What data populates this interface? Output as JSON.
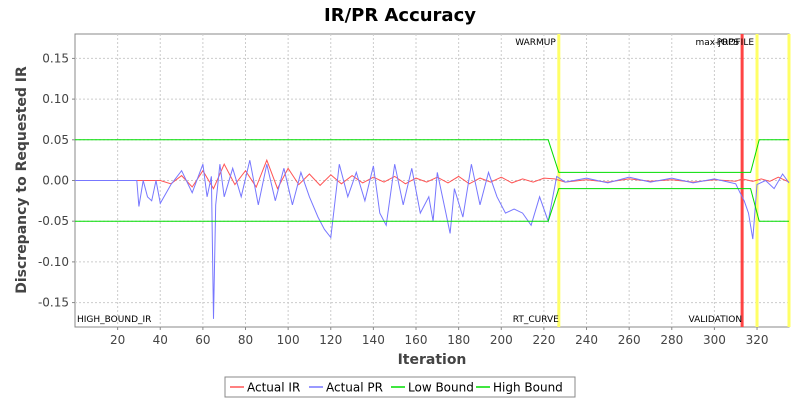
{
  "chart_data": {
    "type": "line",
    "title": "IR/PR Accuracy",
    "xlabel": "Iteration",
    "ylabel": "Discrepancy to Requested IR",
    "xlim": [
      0,
      335
    ],
    "ylim": [
      -0.18,
      0.18
    ],
    "x_ticks": [
      20,
      40,
      60,
      80,
      100,
      120,
      140,
      160,
      180,
      200,
      220,
      240,
      260,
      280,
      300,
      320
    ],
    "y_ticks": [
      -0.15,
      -0.1,
      -0.05,
      0.0,
      0.05,
      0.1,
      0.15
    ],
    "y_tick_labels": [
      "-0.15",
      "-0.10",
      "-0.05",
      "0.00",
      "0.05",
      "0.10",
      "0.15"
    ],
    "grid": true,
    "legend_position": "bottom",
    "series": [
      {
        "name": "Actual IR",
        "color": "#ff5555",
        "x": [
          0,
          40,
          45,
          50,
          55,
          60,
          65,
          70,
          75,
          80,
          85,
          90,
          95,
          100,
          105,
          110,
          115,
          120,
          125,
          130,
          135,
          140,
          145,
          150,
          155,
          160,
          165,
          170,
          175,
          180,
          185,
          190,
          195,
          200,
          205,
          210,
          215,
          220,
          225,
          230,
          240,
          250,
          260,
          270,
          280,
          290,
          300,
          310,
          313,
          318,
          322,
          326,
          330,
          335
        ],
        "y": [
          0,
          0,
          -0.004,
          0.006,
          -0.008,
          0.012,
          -0.01,
          0.02,
          -0.005,
          0.012,
          -0.008,
          0.025,
          -0.01,
          0.015,
          -0.005,
          0.008,
          -0.006,
          0.007,
          -0.004,
          0.006,
          -0.003,
          0.004,
          -0.002,
          0.005,
          -0.004,
          0.003,
          -0.002,
          0.004,
          -0.003,
          0.005,
          -0.004,
          0.003,
          -0.002,
          0.004,
          -0.003,
          0.002,
          -0.002,
          0.003,
          0.002,
          -0.002,
          0.001,
          -0.002,
          0.002,
          -0.001,
          0.001,
          -0.002,
          0.001,
          -0.001,
          0.002,
          -0.001,
          0.002,
          -0.001,
          0.004,
          -0.002
        ]
      },
      {
        "name": "Actual PR",
        "color": "#7777ff",
        "x": [
          0,
          29,
          30,
          32,
          34,
          36,
          38,
          40,
          45,
          50,
          55,
          60,
          62,
          64,
          65,
          66,
          68,
          70,
          74,
          78,
          82,
          86,
          90,
          94,
          98,
          102,
          106,
          110,
          114,
          117,
          120,
          124,
          128,
          132,
          136,
          140,
          143,
          146,
          150,
          154,
          158,
          162,
          166,
          168,
          170,
          174,
          176,
          178,
          182,
          186,
          190,
          194,
          198,
          202,
          206,
          210,
          214,
          218,
          222,
          226,
          230,
          240,
          250,
          260,
          270,
          280,
          290,
          300,
          310,
          312,
          314,
          316,
          318,
          320,
          324,
          328,
          332,
          335
        ],
        "y": [
          0,
          0,
          -0.032,
          0.0,
          -0.02,
          -0.025,
          0.0,
          -0.028,
          -0.005,
          0.012,
          -0.015,
          0.02,
          -0.02,
          0.005,
          -0.17,
          -0.03,
          0.02,
          -0.02,
          0.015,
          -0.02,
          0.025,
          -0.03,
          0.02,
          -0.025,
          0.015,
          -0.03,
          0.01,
          -0.02,
          -0.045,
          -0.06,
          -0.07,
          0.02,
          -0.02,
          0.01,
          -0.025,
          0.018,
          -0.04,
          -0.055,
          0.02,
          -0.03,
          0.015,
          -0.04,
          -0.02,
          -0.05,
          0.01,
          -0.04,
          -0.065,
          -0.01,
          -0.045,
          0.02,
          -0.03,
          0.01,
          -0.02,
          -0.04,
          -0.035,
          -0.04,
          -0.055,
          -0.02,
          -0.05,
          0.005,
          -0.002,
          0.003,
          -0.003,
          0.004,
          -0.002,
          0.003,
          -0.003,
          0.002,
          -0.004,
          -0.015,
          -0.025,
          -0.04,
          -0.072,
          -0.005,
          0.0,
          -0.01,
          0.008,
          -0.003
        ]
      },
      {
        "name": "Low Bound",
        "color": "#00dd00",
        "x": [
          0,
          222,
          227,
          317,
          321,
          335
        ],
        "y": [
          -0.05,
          -0.05,
          -0.01,
          -0.01,
          -0.05,
          -0.05
        ]
      },
      {
        "name": "High Bound",
        "color": "#00dd00",
        "x": [
          0,
          222,
          227,
          317,
          321,
          335
        ],
        "y": [
          0.05,
          0.05,
          0.01,
          0.01,
          0.05,
          0.05
        ]
      }
    ],
    "markers": [
      {
        "x": 227,
        "color": "#ffff66",
        "top_label": "WARMUP",
        "bottom_label": "RT_CURVE"
      },
      {
        "x": 313,
        "color": "#ff4444",
        "top_label": "max-jOPS",
        "bottom_label": "VALIDATION"
      },
      {
        "x": 320,
        "color": "#ffff66",
        "top_label": "PROFILE",
        "bottom_label": ""
      },
      {
        "x": 335,
        "color": "#ffff66",
        "top_label": "",
        "bottom_label": ""
      }
    ],
    "start_label": "HIGH_BOUND_IR"
  }
}
